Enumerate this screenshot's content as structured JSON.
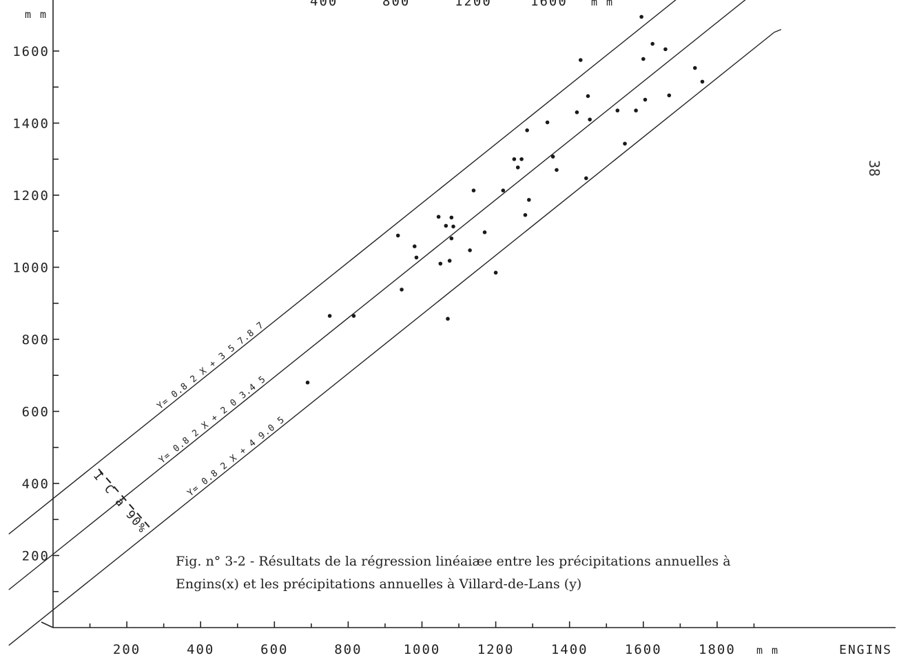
{
  "page_number": "38",
  "y_unit": "m m",
  "x_unit": "m m",
  "x_station": "ENGINS",
  "top_axis": {
    "ticks": [
      "400",
      "800",
      "1200",
      "1600"
    ],
    "unit": "m m"
  },
  "ci_label": "I C à 90%",
  "caption_lines": [
    "Fig. n° 3-2 - Résultats de la régression linéaiæe entre les précipitations annuelles à",
    "Engins(x) et les précipitations annuelles à Villard-de-Lans (y)"
  ],
  "chart_data": {
    "type": "scatter",
    "title": "Fig. n° 3-2 - Résultats de la régression linéaiæe entre les précipitations annuelles à Engins(x) et les précipitations annuelles à Villard-de-Lans (y)",
    "xlabel": "ENGINS",
    "ylabel": "",
    "xlim": [
      0,
      2300
    ],
    "ylim": [
      0,
      1750
    ],
    "x_ticks": [
      200,
      400,
      600,
      800,
      1000,
      1200,
      1400,
      1600,
      1800
    ],
    "y_ticks": [
      200,
      400,
      600,
      800,
      1000,
      1200,
      1400,
      1600
    ],
    "x_minor_ticks": [
      100,
      300,
      500,
      700,
      900,
      1100,
      1300,
      1500,
      1700,
      1900
    ],
    "y_minor_ticks": [
      100,
      300,
      500,
      700,
      900,
      1100,
      1300,
      1500
    ],
    "lines": [
      {
        "label": "Y= 0.8 2 X + 3 5 7.8 7",
        "slope": 0.82,
        "intercept": 357.87,
        "x_range": [
          -120,
          1960
        ]
      },
      {
        "label": "Y= 0.8 2 X + 2 0 3.4 5",
        "slope": 0.82,
        "intercept": 203.45,
        "x_range": [
          -120,
          1960
        ]
      },
      {
        "label": "Y= 0.8 2 X + 4 9.0 5",
        "slope": 0.82,
        "intercept": 49.05,
        "x_range": [
          -120,
          1955
        ]
      }
    ],
    "points": [
      [
        690,
        680
      ],
      [
        750,
        865
      ],
      [
        815,
        865
      ],
      [
        935,
        1088
      ],
      [
        945,
        938
      ],
      [
        980,
        1058
      ],
      [
        985,
        1027
      ],
      [
        1045,
        1140
      ],
      [
        1050,
        1010
      ],
      [
        1065,
        1115
      ],
      [
        1070,
        857
      ],
      [
        1075,
        1018
      ],
      [
        1080,
        1138
      ],
      [
        1080,
        1080
      ],
      [
        1085,
        1113
      ],
      [
        1130,
        1047
      ],
      [
        1140,
        1213
      ],
      [
        1170,
        1097
      ],
      [
        1200,
        985
      ],
      [
        1220,
        1213
      ],
      [
        1250,
        1300
      ],
      [
        1260,
        1277
      ],
      [
        1270,
        1300
      ],
      [
        1280,
        1145
      ],
      [
        1285,
        1380
      ],
      [
        1290,
        1187
      ],
      [
        1340,
        1402
      ],
      [
        1355,
        1307
      ],
      [
        1365,
        1270
      ],
      [
        1420,
        1430
      ],
      [
        1430,
        1575
      ],
      [
        1445,
        1247
      ],
      [
        1450,
        1475
      ],
      [
        1455,
        1410
      ],
      [
        1530,
        1435
      ],
      [
        1550,
        1343
      ],
      [
        1580,
        1435
      ],
      [
        1595,
        1695
      ],
      [
        1600,
        1578
      ],
      [
        1605,
        1465
      ],
      [
        1625,
        1620
      ],
      [
        1660,
        1605
      ],
      [
        1670,
        1477
      ],
      [
        1740,
        1553
      ],
      [
        1760,
        1515
      ]
    ]
  }
}
